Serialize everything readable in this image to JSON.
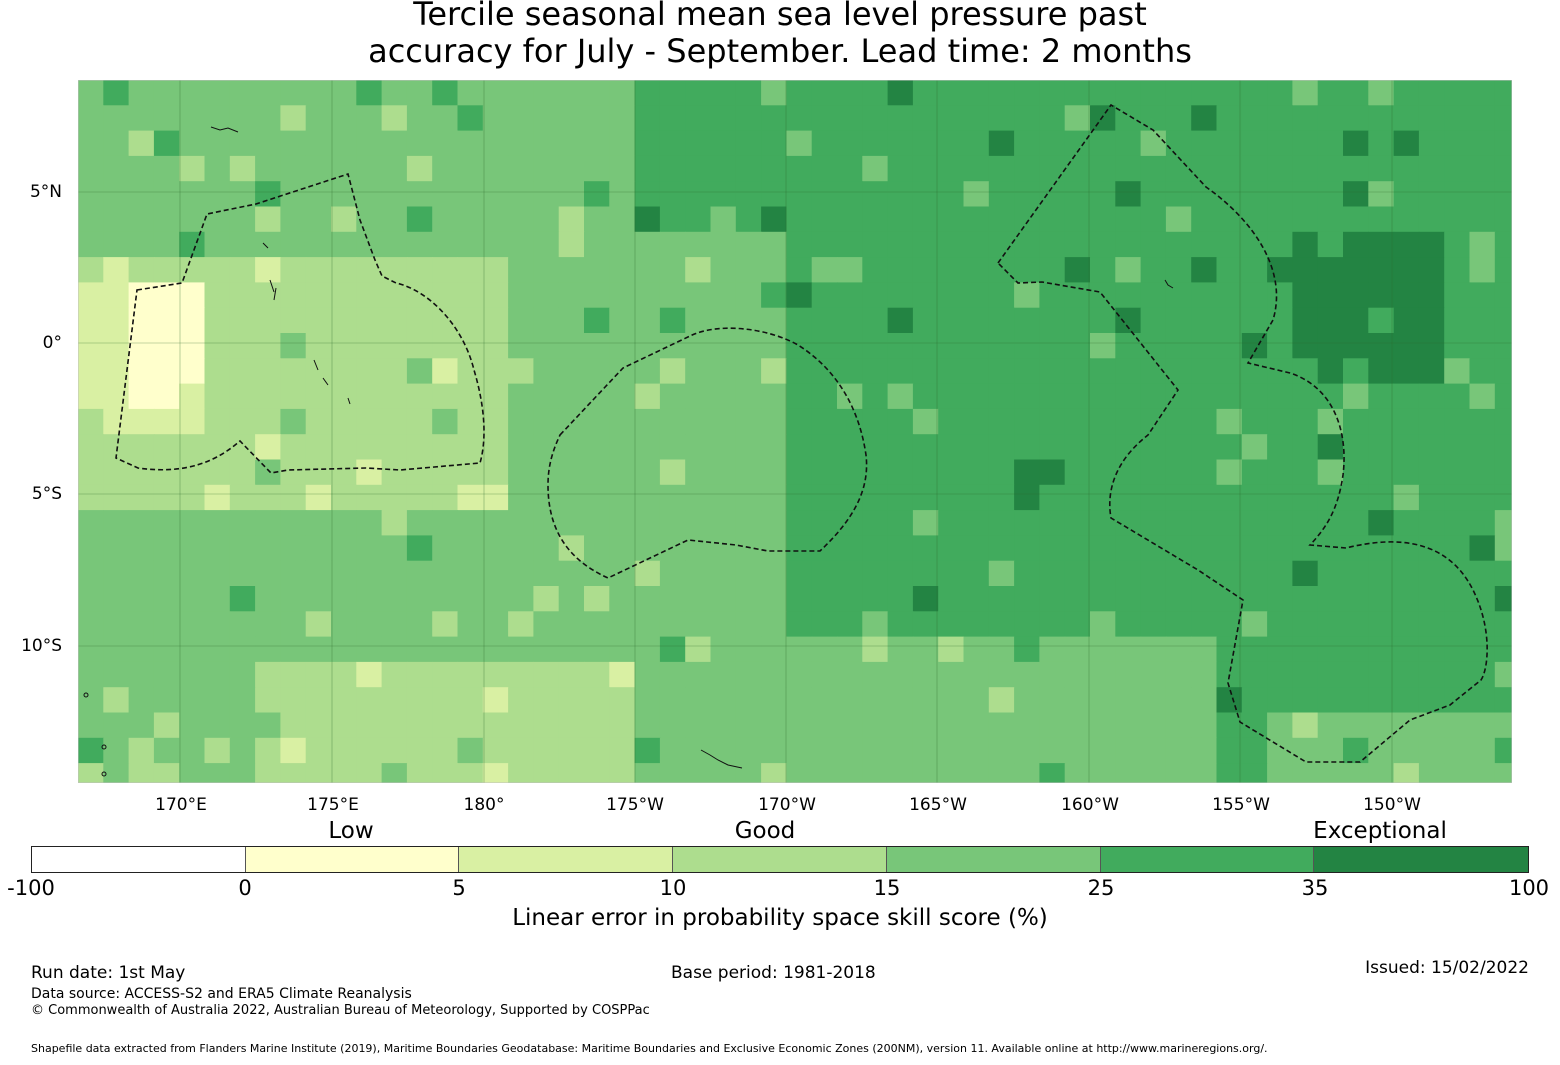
{
  "title_line1": "Tercile seasonal mean sea level pressure past",
  "title_line2": "accuracy for July - September. Lead time: 2 months",
  "map": {
    "lon_labels": [
      "170°E",
      "175°E",
      "180°",
      "175°W",
      "170°W",
      "165°W",
      "160°W",
      "155°W",
      "150°W"
    ],
    "lat_labels": [
      "5°N",
      "0°",
      "5°S",
      "10°S"
    ]
  },
  "colorbar": {
    "categories": [
      "Low",
      "Good",
      "Exceptional"
    ],
    "ticks": [
      "-100",
      "0",
      "5",
      "10",
      "15",
      "25",
      "35",
      "100"
    ],
    "colors": [
      "#ffffff",
      "#ffffcc",
      "#d9f0a3",
      "#addd8e",
      "#78c679",
      "#41ab5d",
      "#238443"
    ],
    "label": "Linear error in probability space skill score (%)"
  },
  "footer": {
    "run_date": "Run date: 1st May",
    "base_period": "Base period: 1981-2018",
    "issued": "Issued: 15/02/2022",
    "data_source": "Data source: ACCESS-S2 and ERA5 Climate Reanalysis",
    "copyright": "© Commonwealth of Australia 2022, Australian Bureau of Meteorology, Supported by COSPPac",
    "shapefile": "Shapefile data extracted from Flanders Marine Institute (2019), Maritime Boundaries Geodatabase: Maritime Boundaries and Exclusive Economic Zones (200NM), version 11. Available online at http://www.marineregions.org/."
  }
}
